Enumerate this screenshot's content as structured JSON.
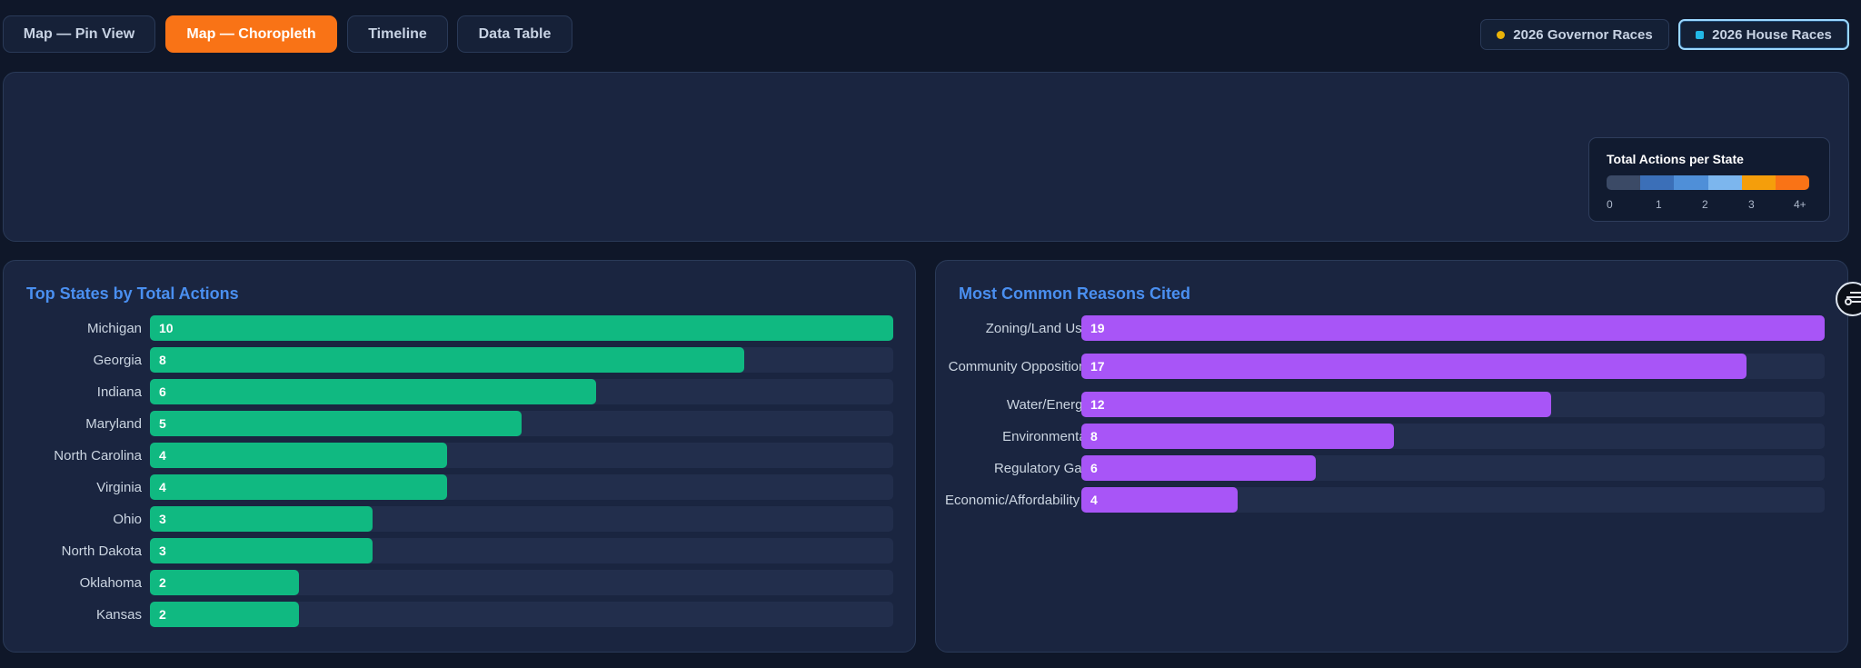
{
  "tabs": [
    {
      "label": "Map — Pin View",
      "active": false
    },
    {
      "label": "Map — Choropleth",
      "active": true
    },
    {
      "label": "Timeline",
      "active": false
    },
    {
      "label": "Data Table",
      "active": false
    }
  ],
  "race_filters": [
    {
      "label": "2026 Governor Races",
      "marker": "dot",
      "color": "#eab308",
      "selected": false
    },
    {
      "label": "2026 House Races",
      "marker": "square",
      "color": "#22b8e6",
      "selected": true
    }
  ],
  "legend": {
    "title": "Total Actions per State",
    "colors": [
      "#3b4a66",
      "#3b6fb8",
      "#4f8fd8",
      "#7cb6ee",
      "#f59e0b",
      "#f97316"
    ],
    "ticks": [
      "0",
      "1",
      "2",
      "3",
      "4+"
    ]
  },
  "states_panel": {
    "title": "Top States by Total Actions",
    "bar_color": "#10b981",
    "max": 10,
    "items": [
      {
        "label": "Michigan",
        "value": 10
      },
      {
        "label": "Georgia",
        "value": 8
      },
      {
        "label": "Indiana",
        "value": 6
      },
      {
        "label": "Maryland",
        "value": 5
      },
      {
        "label": "North Carolina",
        "value": 4
      },
      {
        "label": "Virginia",
        "value": 4
      },
      {
        "label": "Ohio",
        "value": 3
      },
      {
        "label": "North Dakota",
        "value": 3
      },
      {
        "label": "Oklahoma",
        "value": 2
      },
      {
        "label": "Kansas",
        "value": 2
      }
    ]
  },
  "reasons_panel": {
    "title": "Most Common Reasons Cited",
    "bar_color": "#a855f7",
    "max": 19,
    "items": [
      {
        "label": "Zoning/Land Use",
        "value": 19
      },
      {
        "label": "Community Opposition",
        "value": 17
      },
      {
        "label": "Water/Energy",
        "value": 12
      },
      {
        "label": "Environmental",
        "value": 8
      },
      {
        "label": "Regulatory Gap",
        "value": 6
      },
      {
        "label": "Economic/Affordability",
        "value": 4
      }
    ]
  },
  "side_fab_icon": "filter-sliders-icon"
}
